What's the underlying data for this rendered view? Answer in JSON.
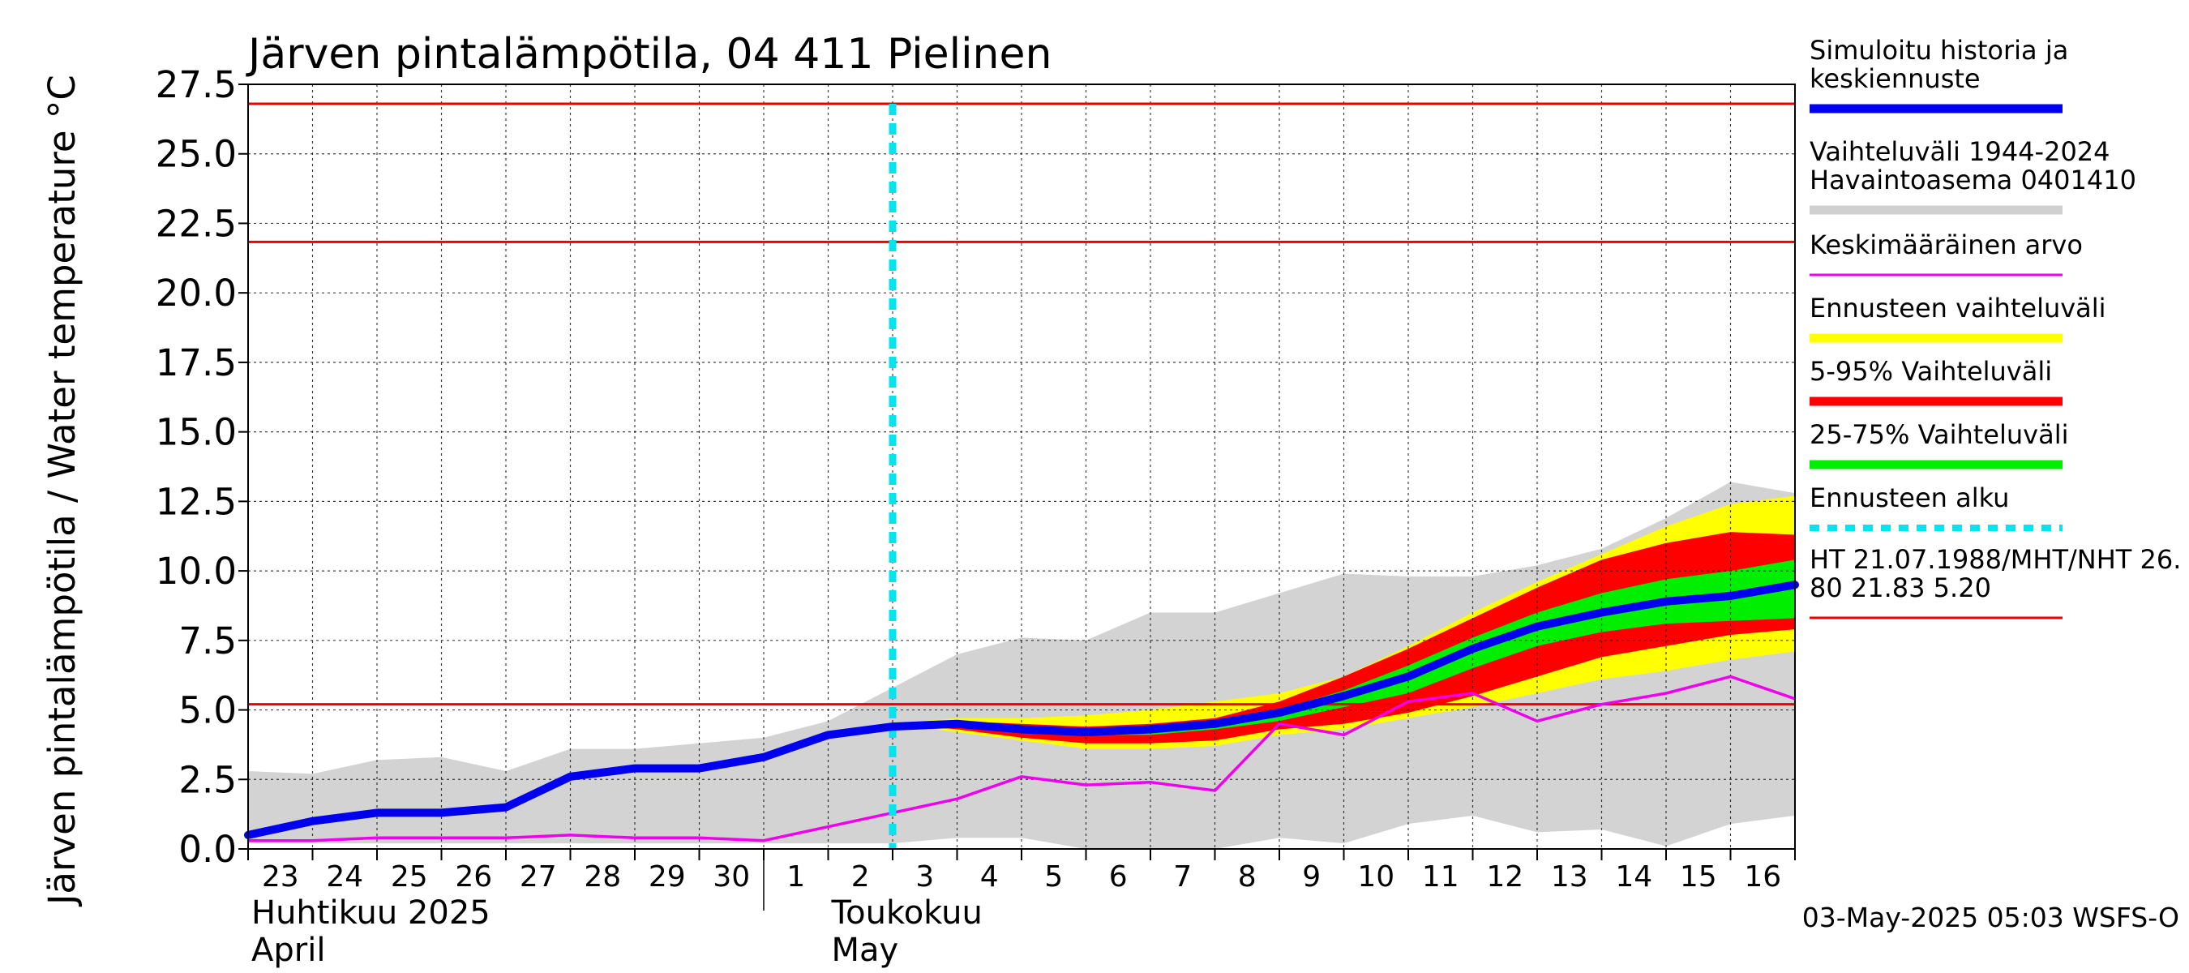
{
  "chart_data": {
    "type": "line",
    "title": "Järven pintalämpötila, 04 411 Pielinen",
    "ylabel": "Järven pintalämpötila / Water temperature °C",
    "ylim": [
      0,
      27.5
    ],
    "yticks": [
      "0.0",
      "2.5",
      "5.0",
      "7.5",
      "10.0",
      "12.5",
      "15.0",
      "17.5",
      "20.0",
      "22.5",
      "25.0",
      "27.5"
    ],
    "xlim": [
      0,
      24
    ],
    "xtick_labels": [
      "23",
      "24",
      "25",
      "26",
      "27",
      "28",
      "29",
      "30",
      "1",
      "2",
      "3",
      "4",
      "5",
      "6",
      "7",
      "8",
      "9",
      "10",
      "11",
      "12",
      "13",
      "14",
      "15",
      "16"
    ],
    "month_labels": [
      {
        "fi": "Huhtikuu  2025",
        "en": "April"
      },
      {
        "fi": "Toukokuu",
        "en": "May"
      }
    ],
    "forecast_start_x": 10,
    "legend": [
      {
        "label": "Simuloitu historia ja\nkeskiennuste",
        "color": "#0000ee",
        "style": "thick"
      },
      {
        "label": "Vaihteluväli 1944-2024\n Havaintoasema 0401410",
        "color": "#d0d0d0",
        "style": "thick"
      },
      {
        "label": "Keskimääräinen arvo",
        "color": "#ee00ee",
        "style": "thin"
      },
      {
        "label": "Ennusteen vaihteluväli",
        "color": "#ffff00",
        "style": "thick"
      },
      {
        "label": "5-95% Vaihteluväli",
        "color": "#ff0000",
        "style": "thick"
      },
      {
        "label": "25-75% Vaihteluväli",
        "color": "#00ee00",
        "style": "thick"
      },
      {
        "label": "Ennusteen alku",
        "color": "#00e5ee",
        "style": "dashed"
      },
      {
        "label": "HT 21.07.1988/MHT/NHT 26.\n80 21.83 5.20",
        "color": "#ee0000",
        "style": "thin"
      }
    ],
    "hlines": [
      26.8,
      21.83,
      5.2
    ],
    "history_range": {
      "x": [
        0,
        1,
        2,
        3,
        4,
        5,
        6,
        7,
        8,
        9,
        10,
        11,
        12,
        13,
        14,
        15,
        16,
        17,
        18,
        19,
        20,
        21,
        22,
        23,
        24
      ],
      "upper": [
        2.8,
        2.7,
        3.2,
        3.3,
        2.8,
        3.6,
        3.6,
        3.8,
        4.0,
        4.6,
        5.8,
        7.0,
        7.6,
        7.5,
        8.5,
        8.5,
        9.2,
        9.9,
        9.8,
        9.8,
        10.2,
        10.8,
        11.9,
        13.2,
        12.8
      ],
      "lower": [
        0.2,
        0.2,
        0.2,
        0.2,
        0.2,
        0.2,
        0.2,
        0.2,
        0.2,
        0.2,
        0.2,
        0.4,
        0.4,
        0.0,
        0.0,
        0.0,
        0.4,
        0.2,
        0.9,
        1.2,
        0.6,
        0.7,
        0.1,
        0.9,
        1.2
      ]
    },
    "forecast_bands": {
      "x": [
        10,
        11,
        12,
        13,
        14,
        15,
        16,
        17,
        18,
        19,
        20,
        21,
        22,
        23,
        24
      ],
      "yellow_upper": [
        4.5,
        4.7,
        4.7,
        4.8,
        5.0,
        5.3,
        5.6,
        6.2,
        7.3,
        8.5,
        9.6,
        10.6,
        11.6,
        12.4,
        12.7
      ],
      "red_upper": [
        4.5,
        4.6,
        4.5,
        4.4,
        4.5,
        4.7,
        5.3,
        6.2,
        7.2,
        8.3,
        9.4,
        10.4,
        11.0,
        11.4,
        11.3
      ],
      "green_upper": [
        4.5,
        4.5,
        4.4,
        4.3,
        4.4,
        4.5,
        5.0,
        5.7,
        6.6,
        7.6,
        8.5,
        9.2,
        9.7,
        10.0,
        10.4
      ],
      "green_lower": [
        4.5,
        4.4,
        4.2,
        4.1,
        4.1,
        4.3,
        4.6,
        5.1,
        5.6,
        6.5,
        7.3,
        7.8,
        8.1,
        8.2,
        8.3
      ],
      "red_lower": [
        4.5,
        4.3,
        4.0,
        3.8,
        3.8,
        3.9,
        4.3,
        4.5,
        4.9,
        5.5,
        6.2,
        6.9,
        7.3,
        7.7,
        7.9
      ],
      "yellow_lower": [
        4.5,
        4.2,
        3.9,
        3.6,
        3.6,
        3.7,
        4.1,
        4.3,
        4.7,
        5.1,
        5.6,
        6.1,
        6.4,
        6.8,
        7.1
      ]
    },
    "series": [
      {
        "name": "Simuloitu historia ja keskiennuste",
        "color": "#0000ee",
        "x": [
          0,
          1,
          2,
          3,
          4,
          5,
          6,
          7,
          8,
          9,
          10,
          11,
          12,
          13,
          14,
          15,
          16,
          17,
          18,
          19,
          20,
          21,
          22,
          23,
          24
        ],
        "values": [
          0.5,
          1.0,
          1.3,
          1.3,
          1.5,
          2.6,
          2.9,
          2.9,
          3.3,
          4.1,
          4.4,
          4.5,
          4.3,
          4.2,
          4.3,
          4.5,
          4.9,
          5.5,
          6.2,
          7.2,
          8.0,
          8.5,
          8.9,
          9.1,
          9.5
        ]
      },
      {
        "name": "Keskimääräinen arvo",
        "color": "#ee00ee",
        "x": [
          0,
          1,
          2,
          3,
          4,
          5,
          6,
          7,
          8,
          9,
          10,
          11,
          12,
          13,
          14,
          15,
          16,
          17,
          18,
          19,
          20,
          21,
          22,
          23,
          24
        ],
        "values": [
          0.3,
          0.3,
          0.4,
          0.4,
          0.4,
          0.5,
          0.4,
          0.4,
          0.3,
          0.8,
          1.3,
          1.8,
          2.6,
          2.3,
          2.4,
          2.1,
          4.5,
          4.1,
          5.3,
          5.6,
          4.6,
          5.2,
          5.6,
          6.2,
          5.4
        ]
      }
    ]
  },
  "footer": {
    "timestamp": "03-May-2025 05:03 WSFS-O"
  }
}
